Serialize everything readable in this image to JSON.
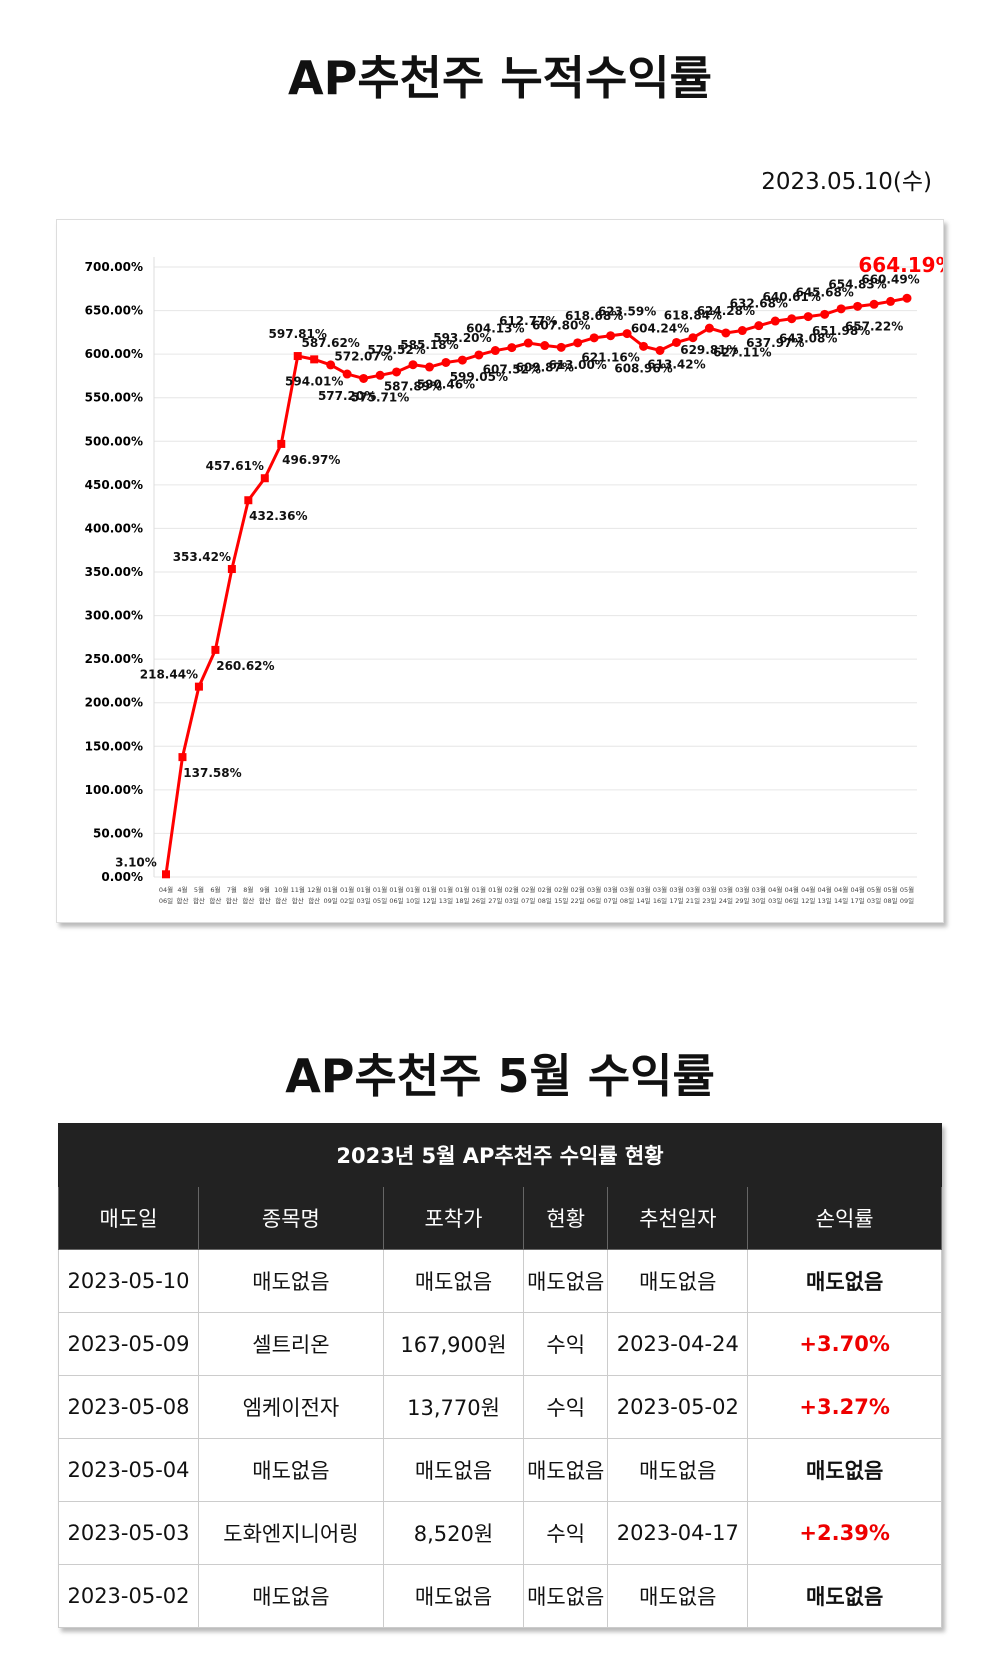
{
  "header": {
    "title": "AP추천주 누적수익률",
    "date": "2023.05.10(수)"
  },
  "chart_data": {
    "type": "line",
    "color": "#ff0000",
    "grid": true,
    "categories": [
      [
        "04월",
        "06일"
      ],
      [
        "4월",
        "합산"
      ],
      [
        "5월",
        "합산"
      ],
      [
        "6월",
        "합산"
      ],
      [
        "7월",
        "합산"
      ],
      [
        "8월",
        "합산"
      ],
      [
        "9월",
        "합산"
      ],
      [
        "10월",
        "합산"
      ],
      [
        "11월",
        "합산"
      ],
      [
        "12월",
        "합산"
      ],
      [
        "01월",
        "09일"
      ],
      [
        "01월",
        "02일"
      ],
      [
        "01월",
        "03일"
      ],
      [
        "01월",
        "05일"
      ],
      [
        "01월",
        "06일"
      ],
      [
        "01월",
        "10일"
      ],
      [
        "01월",
        "12일"
      ],
      [
        "01월",
        "13일"
      ],
      [
        "01월",
        "18일"
      ],
      [
        "01월",
        "26일"
      ],
      [
        "01월",
        "27일"
      ],
      [
        "02월",
        "03일"
      ],
      [
        "02월",
        "07일"
      ],
      [
        "02월",
        "08일"
      ],
      [
        "02월",
        "15일"
      ],
      [
        "02월",
        "22일"
      ],
      [
        "03월",
        "06일"
      ],
      [
        "03월",
        "07일"
      ],
      [
        "03월",
        "08일"
      ],
      [
        "03월",
        "14일"
      ],
      [
        "03월",
        "16일"
      ],
      [
        "03월",
        "17일"
      ],
      [
        "03월",
        "21일"
      ],
      [
        "03월",
        "23일"
      ],
      [
        "03월",
        "24일"
      ],
      [
        "03월",
        "29일"
      ],
      [
        "03월",
        "30일"
      ],
      [
        "04월",
        "03일"
      ],
      [
        "04월",
        "06일"
      ],
      [
        "04월",
        "12일"
      ],
      [
        "04월",
        "13일"
      ],
      [
        "04월",
        "14일"
      ],
      [
        "04월",
        "17일"
      ],
      [
        "05월",
        "03일"
      ],
      [
        "05월",
        "08일"
      ],
      [
        "05월",
        "09일"
      ]
    ],
    "values": [
      3.1,
      137.58,
      218.44,
      260.62,
      353.42,
      432.36,
      457.61,
      496.97,
      597.81,
      594.01,
      587.62,
      577.2,
      572.07,
      575.71,
      579.52,
      587.89,
      585.18,
      590.46,
      593.2,
      599.05,
      604.13,
      607.52,
      612.77,
      609.87,
      607.8,
      613.0,
      618.68,
      621.16,
      623.59,
      608.96,
      604.24,
      613.42,
      618.84,
      629.81,
      624.28,
      627.11,
      632.68,
      637.97,
      640.61,
      643.08,
      645.68,
      651.98,
      654.83,
      657.22,
      660.49,
      664.19
    ],
    "value_labels": [
      "3.10%",
      "137.58%",
      "218.44%",
      "260.62%",
      "353.42%",
      "432.36%",
      "457.61%",
      "496.97%",
      "597.81%",
      "594.01%",
      "587.62%",
      "577.20%",
      "572.07%",
      "575.71%",
      "579.52%",
      "587.89%",
      "585.18%",
      "590.46%",
      "593.20%",
      "599.05%",
      "604.13%",
      "607.52%",
      "612.77%",
      "609.87%",
      "607.80%",
      "613.00%",
      "618.68%",
      "621.16%",
      "623.59%",
      "608.96%",
      "604.24%",
      "613.42%",
      "618.84%",
      "629.81%",
      "624.28%",
      "627.11%",
      "632.68%",
      "637.97%",
      "640.61%",
      "643.08%",
      "645.68%",
      "651.98%",
      "654.83%",
      "657.22%",
      "660.49%",
      "664.19%"
    ],
    "ylim": [
      0,
      700
    ],
    "yticks": [
      {
        "value": 0,
        "label": "0.00%"
      },
      {
        "value": 50,
        "label": "50.00%"
      },
      {
        "value": 100,
        "label": "100.00%"
      },
      {
        "value": 150,
        "label": "150.00%"
      },
      {
        "value": 200,
        "label": "200.00%"
      },
      {
        "value": 250,
        "label": "250.00%"
      },
      {
        "value": 300,
        "label": "300.00%"
      },
      {
        "value": 350,
        "label": "350.00%"
      },
      {
        "value": 400,
        "label": "400.00%"
      },
      {
        "value": 450,
        "label": "450.00%"
      },
      {
        "value": 500,
        "label": "500.00%"
      },
      {
        "value": 550,
        "label": "550.00%"
      },
      {
        "value": 600,
        "label": "600.00%"
      },
      {
        "value": 650,
        "label": "650.00%"
      },
      {
        "value": 700,
        "label": "700.00%"
      }
    ]
  },
  "section": {
    "title": "AP추천주 5월 수익률"
  },
  "table": {
    "title": "2023년 5월 AP추천주 수익률 현황",
    "header": [
      "매도일",
      "종목명",
      "포착가",
      "현황",
      "추천일자",
      "손익률"
    ],
    "rows": [
      [
        "2023-05-10",
        "매도없음",
        "매도없음",
        "매도없음",
        "매도없음",
        "매도없음"
      ],
      [
        "2023-05-09",
        "셀트리온",
        "167,900원",
        "수익",
        "2023-04-24",
        "+3.70%"
      ],
      [
        "2023-05-08",
        "엠케이전자",
        "13,770원",
        "수익",
        "2023-05-02",
        "+3.27%"
      ],
      [
        "2023-05-04",
        "매도없음",
        "매도없음",
        "매도없음",
        "매도없음",
        "매도없음"
      ],
      [
        "2023-05-03",
        "도화엔지니어링",
        "8,520원",
        "수익",
        "2023-04-17",
        "+2.39%"
      ],
      [
        "2023-05-02",
        "매도없음",
        "매도없음",
        "매도없음",
        "매도없음",
        "매도없음"
      ]
    ]
  }
}
